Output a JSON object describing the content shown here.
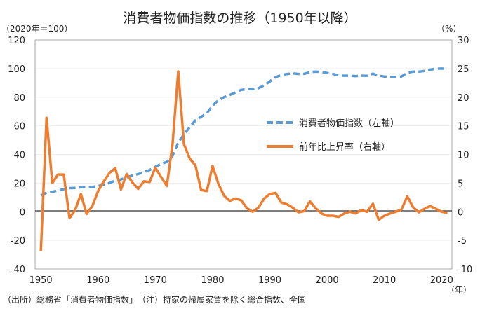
{
  "chart_data": {
    "type": "line",
    "title": "消費者物価指数の推移（1950年以降）",
    "left_axis_unit": "（2020年＝100）",
    "right_axis_unit": "（%）",
    "x_unit": "（年）",
    "footnote": "（出所）総務省「消費者物価指数」　（注）持家の帰属家賃を除く総合指数、全国",
    "xlim": [
      1949,
      2021.8
    ],
    "xticks": [
      "1950",
      "1960",
      "1970",
      "1980",
      "1990",
      "2000",
      "2010",
      "2020"
    ],
    "ylim_left": [
      -40,
      120
    ],
    "yticks_left": [
      "-40",
      "-20",
      "0",
      "20",
      "40",
      "60",
      "80",
      "100",
      "120"
    ],
    "ylim_right": [
      -10,
      30
    ],
    "yticks_right": [
      "-10",
      "-5",
      "0",
      "5",
      "10",
      "15",
      "20",
      "25",
      "30"
    ],
    "grid": true,
    "legend_placement": "center-right",
    "x": [
      1950,
      1951,
      1952,
      1953,
      1954,
      1955,
      1956,
      1957,
      1958,
      1959,
      1960,
      1961,
      1962,
      1963,
      1964,
      1965,
      1966,
      1967,
      1968,
      1969,
      1970,
      1971,
      1972,
      1973,
      1974,
      1975,
      1976,
      1977,
      1978,
      1979,
      1980,
      1981,
      1982,
      1983,
      1984,
      1985,
      1986,
      1987,
      1988,
      1989,
      1990,
      1991,
      1992,
      1993,
      1994,
      1995,
      1996,
      1997,
      1998,
      1999,
      2000,
      2001,
      2002,
      2003,
      2004,
      2005,
      2006,
      2007,
      2008,
      2009,
      2010,
      2011,
      2012,
      2013,
      2014,
      2015,
      2016,
      2017,
      2018,
      2019,
      2020,
      2021
    ],
    "series": [
      {
        "name": "消費者物価指数（左軸）",
        "axis": "left",
        "color": "#5b9bd5",
        "style": "dashed",
        "values": [
          11.4,
          13.3,
          13.9,
          14.8,
          15.8,
          16.5,
          16.6,
          17.1,
          17.1,
          17.3,
          18.0,
          18.9,
          20.2,
          21.7,
          22.6,
          24.1,
          25.3,
          26.3,
          27.7,
          29.1,
          31.4,
          33.3,
          34.8,
          38.9,
          48.4,
          54.1,
          59.1,
          63.9,
          66.3,
          68.7,
          74.2,
          77.8,
          80.0,
          81.5,
          83.4,
          85.1,
          85.6,
          85.7,
          86.3,
          88.2,
          91.0,
          94.0,
          95.5,
          96.2,
          96.6,
          96.2,
          96.3,
          97.5,
          97.9,
          97.6,
          96.9,
          96.2,
          95.3,
          95.0,
          95.0,
          94.7,
          95.0,
          95.0,
          96.4,
          95.1,
          94.4,
          94.1,
          94.1,
          94.5,
          97.0,
          97.9,
          97.8,
          98.3,
          99.3,
          99.8,
          100.0,
          99.8
        ]
      },
      {
        "name": "前年比上昇率（右軸）",
        "axis": "right",
        "color": "#ed7d31",
        "style": "solid",
        "values": [
          -6.9,
          16.4,
          5.0,
          6.5,
          6.5,
          -1.1,
          0.3,
          3.1,
          -0.4,
          1.0,
          3.6,
          5.3,
          6.8,
          7.6,
          3.9,
          6.6,
          5.1,
          4.0,
          5.3,
          5.2,
          7.7,
          6.1,
          4.5,
          11.7,
          24.5,
          11.8,
          9.3,
          8.1,
          3.8,
          3.6,
          8.0,
          4.9,
          2.8,
          1.9,
          2.3,
          2.0,
          0.6,
          0.0,
          0.7,
          2.3,
          3.1,
          3.3,
          1.6,
          1.3,
          0.7,
          -0.1,
          0.1,
          1.8,
          0.6,
          -0.3,
          -0.7,
          -0.7,
          -0.9,
          -0.3,
          0.0,
          -0.3,
          0.3,
          0.0,
          1.4,
          -1.4,
          -0.7,
          -0.3,
          0.0,
          0.4,
          2.7,
          0.8,
          -0.1,
          0.5,
          1.0,
          0.5,
          0.0,
          -0.2
        ]
      }
    ]
  }
}
